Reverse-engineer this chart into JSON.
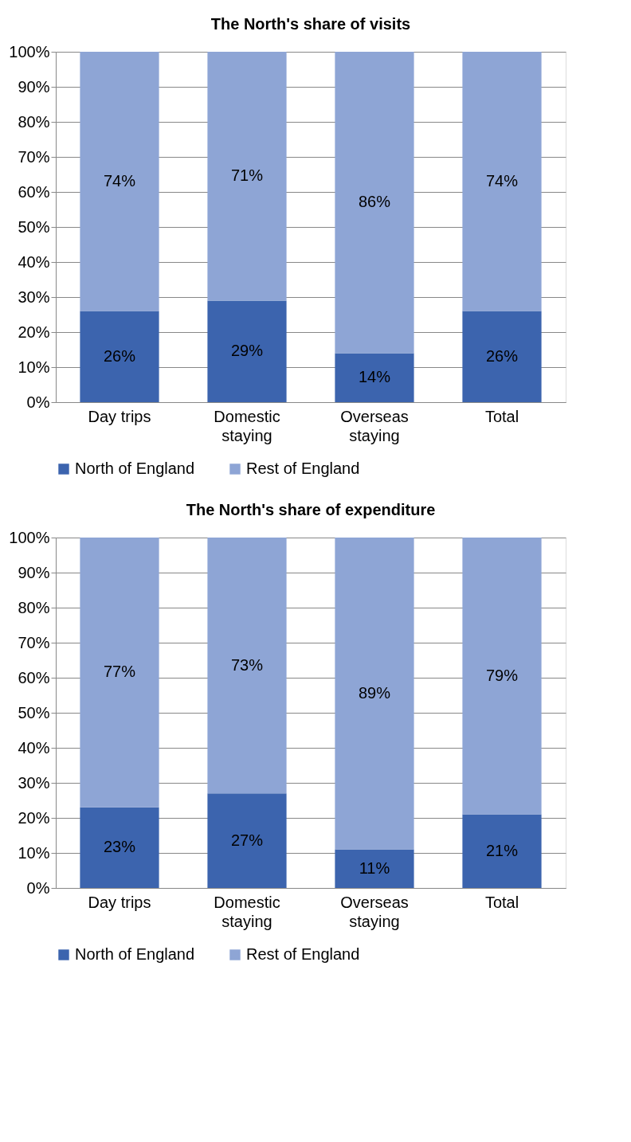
{
  "chart_data": [
    {
      "type": "bar",
      "title": "The North's share of visits",
      "stacked": true,
      "categories": [
        "Day trips",
        "Domestic staying",
        "Overseas staying",
        "Total"
      ],
      "series": [
        {
          "name": "North of England",
          "color": "#3c64ae",
          "values": [
            26,
            29,
            14,
            26
          ],
          "value_labels": [
            "26%",
            "29%",
            "14%",
            "26%"
          ]
        },
        {
          "name": "Rest of England",
          "color": "#8ea5d5",
          "values": [
            74,
            71,
            86,
            74
          ],
          "value_labels": [
            "74%",
            "71%",
            "86%",
            "74%"
          ]
        }
      ],
      "ylim": [
        0,
        100
      ],
      "yticks": [
        {
          "value": 0,
          "label": "0%"
        },
        {
          "value": 10,
          "label": "10%"
        },
        {
          "value": 20,
          "label": "20%"
        },
        {
          "value": 30,
          "label": "30%"
        },
        {
          "value": 40,
          "label": "40%"
        },
        {
          "value": 50,
          "label": "50%"
        },
        {
          "value": 60,
          "label": "60%"
        },
        {
          "value": 70,
          "label": "70%"
        },
        {
          "value": 80,
          "label": "80%"
        },
        {
          "value": 90,
          "label": "90%"
        },
        {
          "value": 100,
          "label": "100%"
        }
      ],
      "grid": "y",
      "legend": "bottom"
    },
    {
      "type": "bar",
      "title": "The North's share of expenditure",
      "stacked": true,
      "categories": [
        "Day trips",
        "Domestic staying",
        "Overseas staying",
        "Total"
      ],
      "series": [
        {
          "name": "North of England",
          "color": "#3c64ae",
          "values": [
            23,
            27,
            11,
            21
          ],
          "value_labels": [
            "23%",
            "27%",
            "11%",
            "21%"
          ]
        },
        {
          "name": "Rest of England",
          "color": "#8ea5d5",
          "values": [
            77,
            73,
            89,
            79
          ],
          "value_labels": [
            "77%",
            "73%",
            "89%",
            "79%"
          ]
        }
      ],
      "ylim": [
        0,
        100
      ],
      "yticks": [
        {
          "value": 0,
          "label": "0%"
        },
        {
          "value": 10,
          "label": "10%"
        },
        {
          "value": 20,
          "label": "20%"
        },
        {
          "value": 30,
          "label": "30%"
        },
        {
          "value": 40,
          "label": "40%"
        },
        {
          "value": 50,
          "label": "50%"
        },
        {
          "value": 60,
          "label": "60%"
        },
        {
          "value": 70,
          "label": "70%"
        },
        {
          "value": 80,
          "label": "80%"
        },
        {
          "value": 90,
          "label": "90%"
        },
        {
          "value": 100,
          "label": "100%"
        }
      ],
      "grid": "y",
      "legend": "bottom"
    }
  ]
}
